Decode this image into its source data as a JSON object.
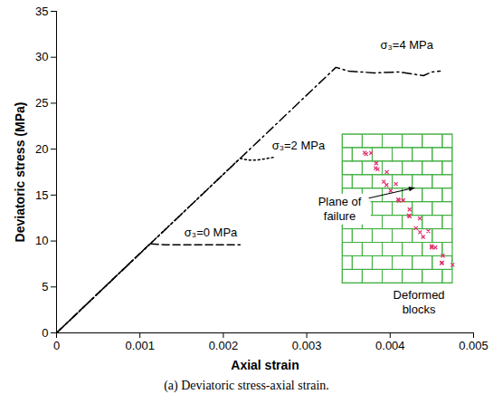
{
  "chart_data": {
    "type": "line",
    "x_label": "Axial strain",
    "y_label": "Deviatoric stress (MPa)",
    "caption": "(a) Deviatoric stress-axial strain.",
    "xlim": [
      0,
      0.005
    ],
    "xticks": [
      0,
      0.001,
      0.002,
      0.003,
      0.004,
      0.005
    ],
    "ylim": [
      0,
      35
    ],
    "yticks": [
      0,
      5,
      10,
      15,
      20,
      25,
      30,
      35
    ],
    "grid": false,
    "series": [
      {
        "name": "σ₃=0 MPa",
        "color": "#000000",
        "line_style": "dashed",
        "x": [
          0,
          0.00112,
          0.0013,
          0.0016,
          0.0019,
          0.0022
        ],
        "values": [
          0,
          9.7,
          9.6,
          9.6,
          9.6,
          9.6
        ],
        "label": {
          "x": 0.00185,
          "y": 10.9
        }
      },
      {
        "name": "σ₃=2 MPa",
        "color": "#000000",
        "line_style": "dotted",
        "x": [
          0,
          0.0022,
          0.0023,
          0.0024,
          0.0026
        ],
        "values": [
          0,
          19.0,
          18.8,
          18.8,
          19.1
        ],
        "label": {
          "x": 0.0029,
          "y": 20.4
        }
      },
      {
        "name": "σ₃=4 MPa",
        "color": "#000000",
        "line_style": "dashdot",
        "x": [
          0,
          0.00335,
          0.0035,
          0.0038,
          0.0041,
          0.0044,
          0.0045,
          0.0046
        ],
        "values": [
          0,
          28.9,
          28.5,
          28.3,
          28.4,
          28.0,
          28.4,
          28.5
        ],
        "label": {
          "x": 0.0042,
          "y": 31.3
        }
      }
    ],
    "inset": {
      "pointer_label": "Plane of failure",
      "caption": "Deformed blocks"
    }
  }
}
